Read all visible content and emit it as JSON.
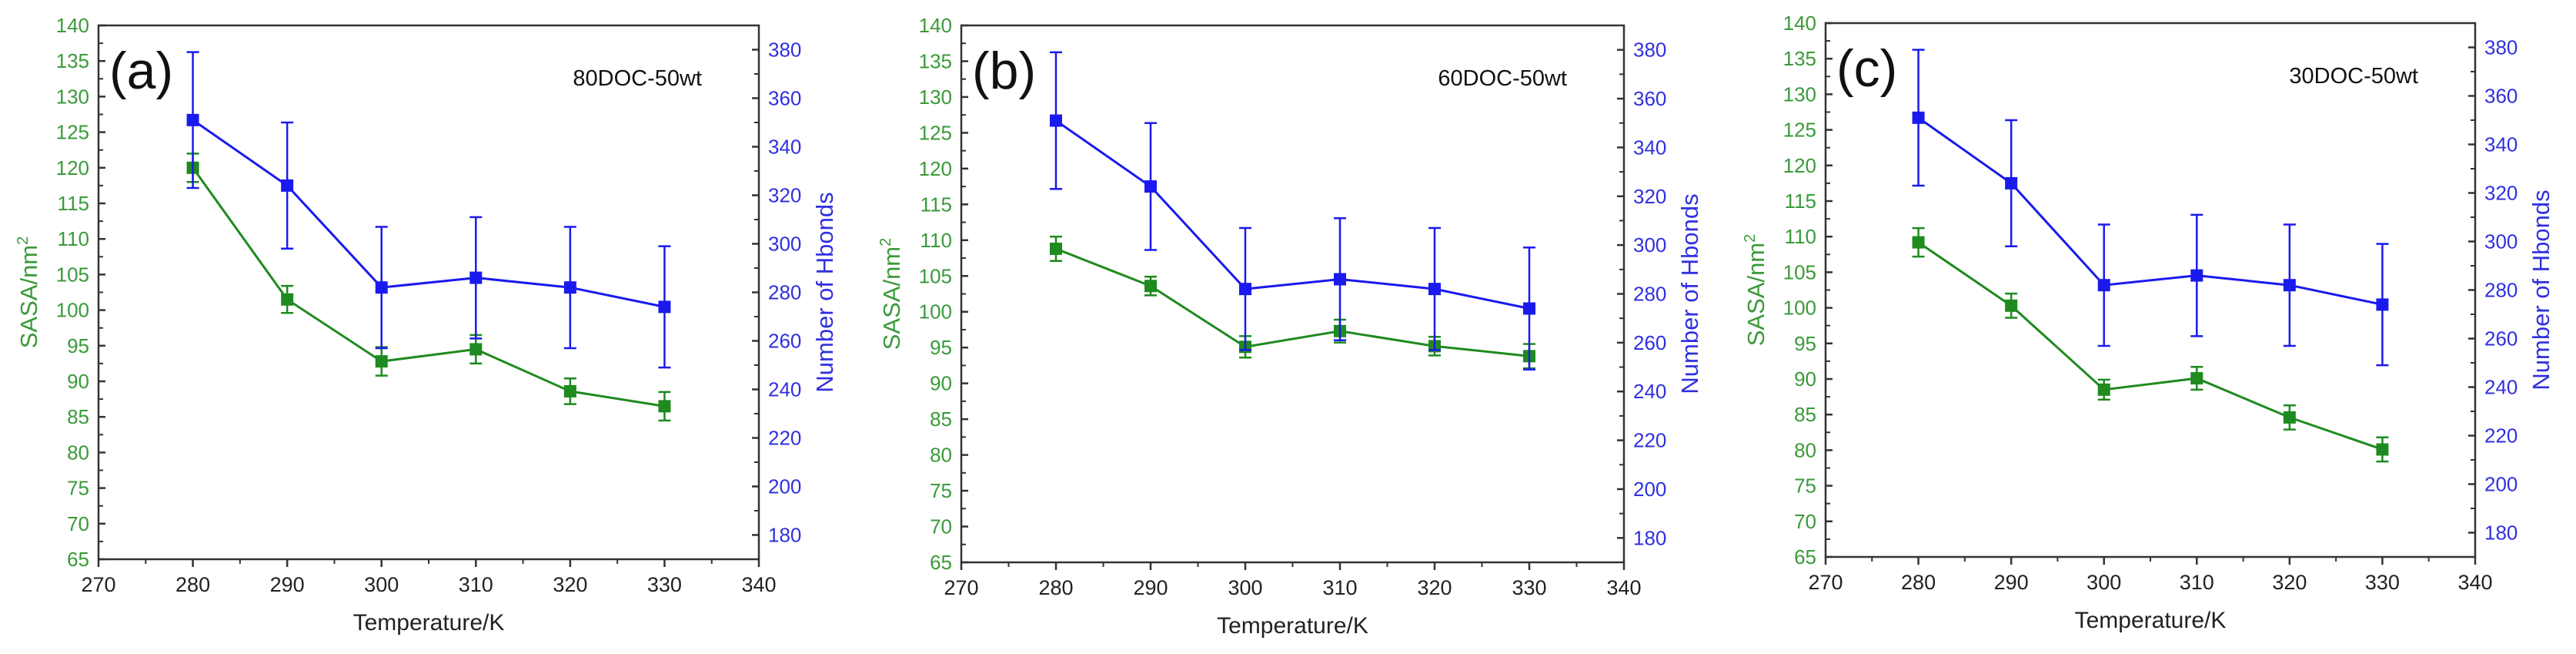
{
  "colors": {
    "sasa": "#1f8a1f",
    "hbonds": "#1a1aee",
    "sasa_text": "#3a9a3a",
    "hbonds_text": "#3030e0",
    "axis": "#333333"
  },
  "chart_data": [
    {
      "type": "line",
      "panel_label": "(a)",
      "annotation": "80DOC-50wt",
      "xlabel": "Temperature/K",
      "ylabel_left": "SASA/nm",
      "ylabel_left_sup": "2",
      "ylabel_right": "Number of Hbonds",
      "xlim": [
        270,
        340
      ],
      "xticks": [
        270,
        280,
        290,
        300,
        310,
        320,
        330,
        340
      ],
      "ylim_left": [
        65,
        140
      ],
      "yticks_left": [
        65,
        70,
        75,
        80,
        85,
        90,
        95,
        100,
        105,
        110,
        115,
        120,
        125,
        130,
        135,
        140
      ],
      "ylim_right": [
        170,
        390
      ],
      "yticks_right": [
        180,
        200,
        220,
        240,
        260,
        280,
        300,
        320,
        340,
        360,
        380
      ],
      "grid": false,
      "x": [
        280,
        290,
        300,
        310,
        320,
        330
      ],
      "series": [
        {
          "axis": "left",
          "color": "#1f8a1f",
          "values": [
            120.0,
            101.5,
            92.8,
            94.5,
            88.6,
            86.5
          ],
          "errors": [
            2.0,
            1.9,
            2.0,
            2.0,
            1.8,
            2.0
          ]
        },
        {
          "axis": "right",
          "color": "#1a1aee",
          "values": [
            351,
            324,
            282,
            286,
            282,
            274
          ],
          "errors": [
            28,
            26,
            25,
            25,
            25,
            25
          ]
        }
      ]
    },
    {
      "type": "line",
      "panel_label": "(b)",
      "annotation": "60DOC-50wt",
      "xlabel": "Temperature/K",
      "ylabel_left": "SASA/nm",
      "ylabel_left_sup": "2",
      "ylabel_right": "Number of Hbonds",
      "xlim": [
        270,
        340
      ],
      "xticks": [
        270,
        280,
        290,
        300,
        310,
        320,
        330,
        340
      ],
      "ylim_left": [
        65,
        140
      ],
      "yticks_left": [
        65,
        70,
        75,
        80,
        85,
        90,
        95,
        100,
        105,
        110,
        115,
        120,
        125,
        130,
        135,
        140
      ],
      "ylim_right": [
        170,
        390
      ],
      "yticks_right": [
        180,
        200,
        220,
        240,
        260,
        280,
        300,
        320,
        340,
        360,
        380
      ],
      "grid": false,
      "x": [
        280,
        290,
        300,
        310,
        320,
        330
      ],
      "series": [
        {
          "axis": "left",
          "color": "#1f8a1f",
          "values": [
            108.8,
            103.6,
            95.1,
            97.3,
            95.2,
            93.8
          ],
          "errors": [
            1.7,
            1.3,
            1.5,
            1.6,
            1.3,
            1.7
          ]
        },
        {
          "axis": "right",
          "color": "#1a1aee",
          "values": [
            351,
            324,
            282,
            286,
            282,
            274
          ],
          "errors": [
            28,
            26,
            25,
            25,
            25,
            25
          ]
        }
      ]
    },
    {
      "type": "line",
      "panel_label": "(c)",
      "annotation": "30DOC-50wt",
      "xlabel": "Temperature/K",
      "ylabel_left": "SASA/nm",
      "ylabel_left_sup": "2",
      "ylabel_right": "Number of Hbonds",
      "xlim": [
        270,
        340
      ],
      "xticks": [
        270,
        280,
        290,
        300,
        310,
        320,
        330,
        340
      ],
      "ylim_left": [
        65,
        140
      ],
      "yticks_left": [
        65,
        70,
        75,
        80,
        85,
        90,
        95,
        100,
        105,
        110,
        115,
        120,
        125,
        130,
        135,
        140
      ],
      "ylim_right": [
        170,
        390
      ],
      "yticks_right": [
        180,
        200,
        220,
        240,
        260,
        280,
        300,
        320,
        340,
        360,
        380
      ],
      "grid": false,
      "x": [
        280,
        290,
        300,
        310,
        320,
        330
      ],
      "series": [
        {
          "axis": "left",
          "color": "#1f8a1f",
          "values": [
            109.2,
            100.3,
            88.5,
            90.1,
            84.6,
            80.1
          ],
          "errors": [
            2.0,
            1.7,
            1.4,
            1.6,
            1.7,
            1.7
          ]
        },
        {
          "axis": "right",
          "color": "#1a1aee",
          "values": [
            351,
            324,
            282,
            286,
            282,
            274
          ],
          "errors": [
            28,
            26,
            25,
            25,
            25,
            25
          ]
        }
      ]
    }
  ]
}
